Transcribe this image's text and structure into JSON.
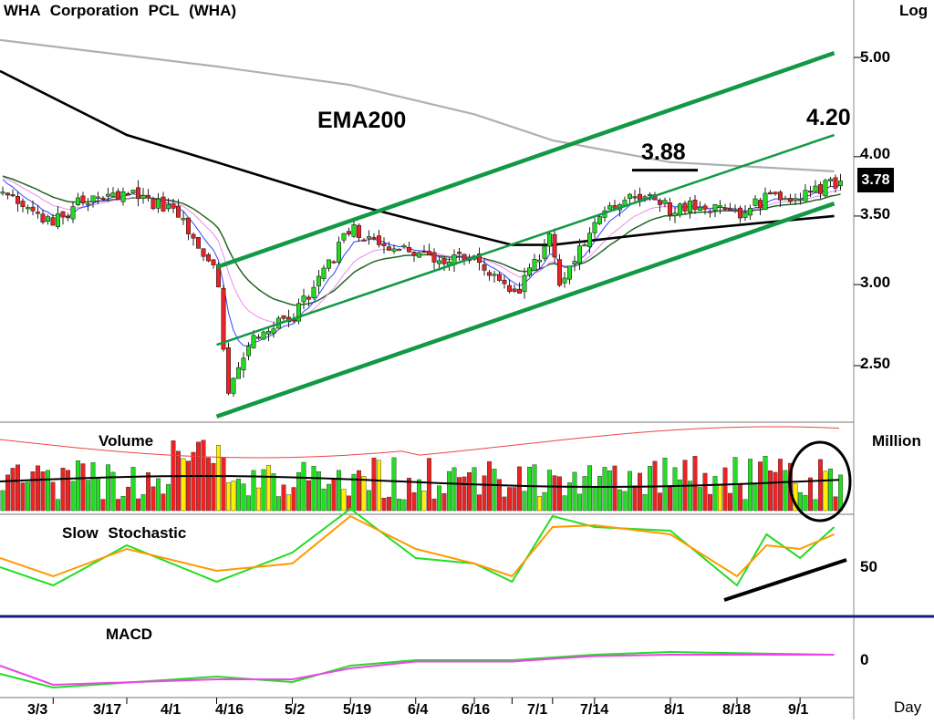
{
  "header": {
    "title": "WHA Corporation PCL (WHA)",
    "scale_label": "Log"
  },
  "annotations": {
    "ema_label": "EMA200",
    "high_label": "3.88",
    "target_label": "4.20"
  },
  "current_price": "3.78",
  "panels": {
    "volume": {
      "label": "Volume",
      "unit": "Million"
    },
    "stochastic": {
      "label": "Slow Stochastic",
      "level": "50"
    },
    "macd": {
      "label": "MACD",
      "level": "0"
    }
  },
  "x_axis_label": "Day",
  "colors": {
    "up": "#22dd22",
    "down": "#ee2222",
    "neutral": "#ffee00",
    "channel": "#119944",
    "ema200": "#b0b0b0",
    "ema50": "#000000",
    "ema_mid": "#226622",
    "ema_fast": "#ee88ee",
    "ema_short": "#3344ff",
    "stoch_k": "#22dd22",
    "stoch_d": "#ff9900",
    "macd_line": "#22dd22",
    "macd_signal": "#ee44ee"
  },
  "chart_data": [
    {
      "type": "candlestick",
      "title": "WHA Corporation PCL (WHA)",
      "y_scale": "log",
      "ylim": [
        2.2,
        5.6
      ],
      "y_ticks": [
        "5.00",
        "4.00",
        "3.50",
        "3.00",
        "2.50"
      ],
      "x_ticks": [
        "3/3",
        "3/17",
        "4/1",
        "4/16",
        "5/2",
        "5/19",
        "6/4",
        "6/16",
        "7/1",
        "7/14",
        "8/1",
        "8/18",
        "9/1"
      ],
      "close_points": [
        {
          "date": "2/24",
          "close": 3.7
        },
        {
          "date": "3/3",
          "close": 3.45
        },
        {
          "date": "3/10",
          "close": 3.65
        },
        {
          "date": "3/17",
          "close": 3.7
        },
        {
          "date": "3/24",
          "close": 3.55
        },
        {
          "date": "4/1",
          "close": 3.1
        },
        {
          "date": "4/3",
          "close": 2.35
        },
        {
          "date": "4/8",
          "close": 2.65
        },
        {
          "date": "4/16",
          "close": 2.8
        },
        {
          "date": "4/24",
          "close": 3.05
        },
        {
          "date": "5/2",
          "close": 3.4
        },
        {
          "date": "5/9",
          "close": 3.3
        },
        {
          "date": "5/19",
          "close": 3.2
        },
        {
          "date": "5/27",
          "close": 3.15
        },
        {
          "date": "6/4",
          "close": 3.2
        },
        {
          "date": "6/10",
          "close": 3.05
        },
        {
          "date": "6/16",
          "close": 2.9
        },
        {
          "date": "6/23",
          "close": 3.15
        },
        {
          "date": "7/1",
          "close": 3.35
        },
        {
          "date": "7/4",
          "close": 3.0
        },
        {
          "date": "7/14",
          "close": 3.45
        },
        {
          "date": "7/24",
          "close": 3.7
        },
        {
          "date": "8/1",
          "close": 3.55
        },
        {
          "date": "8/8",
          "close": 3.6
        },
        {
          "date": "8/18",
          "close": 3.5
        },
        {
          "date": "8/25",
          "close": 3.65
        },
        {
          "date": "9/1",
          "close": 3.65
        },
        {
          "date": "9/8",
          "close": 3.78
        }
      ],
      "series": [
        {
          "name": "EMA200",
          "points": [
            {
              "date": "2/24",
              "value": 5.2
            },
            {
              "date": "4/1",
              "value": 4.9
            },
            {
              "date": "5/2",
              "value": 4.7
            },
            {
              "date": "6/4",
              "value": 4.4
            },
            {
              "date": "7/1",
              "value": 4.15
            },
            {
              "date": "8/1",
              "value": 3.95
            },
            {
              "date": "9/8",
              "value": 3.87
            }
          ]
        },
        {
          "name": "",
          "points": [
            {
              "date": "2/24",
              "value": 4.85
            },
            {
              "date": "3/17",
              "value": 4.2
            },
            {
              "date": "4/1",
              "value": 3.95
            },
            {
              "date": "5/2",
              "value": 3.6
            },
            {
              "date": "6/4",
              "value": 3.35
            },
            {
              "date": "6/16",
              "value": 3.28
            },
            {
              "date": "7/1",
              "value": 3.28
            },
            {
              "date": "8/1",
              "value": 3.38
            },
            {
              "date": "9/8",
              "value": 3.5
            }
          ]
        }
      ],
      "trendlines": [
        {
          "from": {
            "date": "4/1",
            "value": 2.23
          },
          "to": {
            "date": "9/8",
            "value": 3.6
          }
        },
        {
          "from": {
            "date": "4/1",
            "value": 2.62
          },
          "to": {
            "date": "9/8",
            "value": 4.2
          }
        },
        {
          "from": {
            "date": "4/1",
            "value": 3.12
          },
          "to": {
            "date": "9/8",
            "value": 5.05
          }
        }
      ]
    },
    {
      "type": "bar",
      "title": "Volume",
      "unit": "Million",
      "note": "volume bars with two moving averages; recent bars circled"
    },
    {
      "type": "line",
      "title": "Slow Stochastic",
      "y_ticks": [
        "50"
      ],
      "series": [
        {
          "name": "",
          "points": [
            {
              "date": "2/24",
              "value": 50
            },
            {
              "date": "3/3",
              "value": 40
            },
            {
              "date": "3/17",
              "value": 62
            },
            {
              "date": "4/1",
              "value": 42
            },
            {
              "date": "4/16",
              "value": 58
            },
            {
              "date": "5/2",
              "value": 82
            },
            {
              "date": "5/19",
              "value": 55
            },
            {
              "date": "6/4",
              "value": 52
            },
            {
              "date": "6/16",
              "value": 42
            },
            {
              "date": "7/1",
              "value": 78
            },
            {
              "date": "7/14",
              "value": 72
            },
            {
              "date": "8/1",
              "value": 70
            },
            {
              "date": "8/18",
              "value": 40
            },
            {
              "date": "8/25",
              "value": 68
            },
            {
              "date": "9/1",
              "value": 55
            },
            {
              "date": "9/8",
              "value": 72
            }
          ]
        },
        {
          "name": "",
          "points": [
            {
              "date": "2/24",
              "value": 55
            },
            {
              "date": "3/3",
              "value": 45
            },
            {
              "date": "3/17",
              "value": 60
            },
            {
              "date": "4/1",
              "value": 48
            },
            {
              "date": "4/16",
              "value": 52
            },
            {
              "date": "5/2",
              "value": 78
            },
            {
              "date": "5/19",
              "value": 60
            },
            {
              "date": "6/4",
              "value": 52
            },
            {
              "date": "6/16",
              "value": 45
            },
            {
              "date": "7/1",
              "value": 72
            },
            {
              "date": "7/14",
              "value": 73
            },
            {
              "date": "8/1",
              "value": 68
            },
            {
              "date": "8/18",
              "value": 45
            },
            {
              "date": "8/25",
              "value": 62
            },
            {
              "date": "9/1",
              "value": 60
            },
            {
              "date": "9/8",
              "value": 68
            }
          ]
        }
      ]
    },
    {
      "type": "line",
      "title": "MACD",
      "y_ticks": [
        "0"
      ],
      "series": [
        {
          "name": "",
          "points": [
            {
              "date": "2/24",
              "value": -0.05
            },
            {
              "date": "3/3",
              "value": -0.1
            },
            {
              "date": "4/1",
              "value": -0.06
            },
            {
              "date": "4/16",
              "value": -0.08
            },
            {
              "date": "5/2",
              "value": -0.02
            },
            {
              "date": "5/19",
              "value": 0.0
            },
            {
              "date": "6/16",
              "value": 0.0
            },
            {
              "date": "7/1",
              "value": 0.01
            },
            {
              "date": "7/14",
              "value": 0.02
            },
            {
              "date": "8/1",
              "value": 0.03
            },
            {
              "date": "9/8",
              "value": 0.02
            }
          ]
        },
        {
          "name": "",
          "points": [
            {
              "date": "2/24",
              "value": -0.02
            },
            {
              "date": "3/3",
              "value": -0.09
            },
            {
              "date": "4/1",
              "value": -0.07
            },
            {
              "date": "4/16",
              "value": -0.07
            },
            {
              "date": "5/2",
              "value": -0.03
            },
            {
              "date": "5/19",
              "value": -0.005
            },
            {
              "date": "6/16",
              "value": -0.005
            },
            {
              "date": "7/1",
              "value": 0.005
            },
            {
              "date": "7/14",
              "value": 0.015
            },
            {
              "date": "8/1",
              "value": 0.02
            },
            {
              "date": "9/8",
              "value": 0.02
            }
          ]
        }
      ]
    }
  ]
}
